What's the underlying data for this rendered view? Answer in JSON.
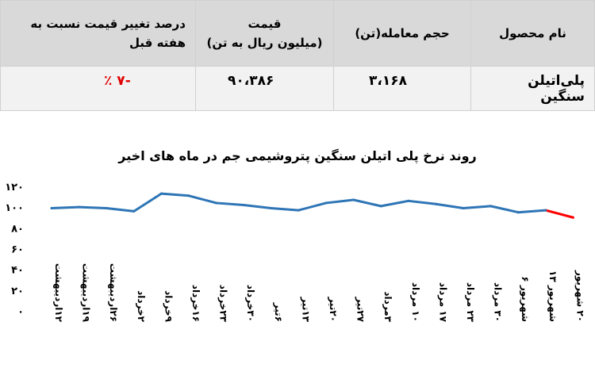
{
  "table": {
    "headers": {
      "product": "نام محصول",
      "volume": "حجم معامله(تن)",
      "price": "قیمت",
      "price_unit": "(میلیون ریال به تن)",
      "change": "درصد تغییر قیمت نسبت به هفته قبل"
    },
    "row": {
      "product": "پلی‌اتیلن سنگین",
      "volume": "۳،۱۶۸",
      "price": "۹۰،۳۸۶",
      "change": "-۷ ٪"
    }
  },
  "chart_data": {
    "type": "line",
    "title": "روند نرخ پلی اتیلن سنگین پتروشیمی جم در ماه های اخیر",
    "xlabel": "",
    "ylabel": "",
    "ylim": [
      0,
      120
    ],
    "yticks": [
      0,
      20,
      40,
      60,
      80,
      100,
      120
    ],
    "ytick_labels": [
      "۰",
      "۲۰",
      "۴۰",
      "۶۰",
      "۸۰",
      "۱۰۰",
      "۱۲۰"
    ],
    "grid": false,
    "categories": [
      "۱۲اردیبهشت",
      "۱۹اردیبهشت",
      "۲۶اردیبهشت",
      "۲خرداد",
      "۹خرداد",
      "۱۶خرداد",
      "۲۳خرداد",
      "۳۰خرداد",
      "۶تیر",
      "۱۳تیر",
      "۲۰تیر",
      "۲۷تیر",
      "۳مرداد",
      "۱۰ مرداد",
      "۱۷ مرداد",
      "۲۳ مرداد",
      "۳۰ مرداد",
      "شهریور ۶",
      "شهریور ۱۳",
      "۲۰ شهریور"
    ],
    "values": [
      99,
      100,
      99,
      96,
      113,
      111,
      104,
      102,
      99,
      97,
      104,
      107,
      101,
      106,
      103,
      99,
      101,
      95,
      97,
      90
    ],
    "colors": {
      "line": "#2e75b6",
      "last_segment": "#ff0000"
    }
  }
}
